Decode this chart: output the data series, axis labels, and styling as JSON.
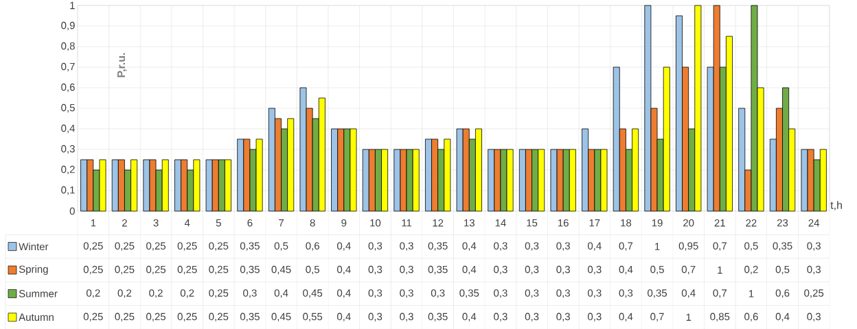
{
  "chart_data": {
    "type": "bar",
    "xlabel": "t,h",
    "ylabel": "P,r.u.",
    "categories": [
      "1",
      "2",
      "3",
      "4",
      "5",
      "6",
      "7",
      "8",
      "9",
      "10",
      "11",
      "12",
      "13",
      "14",
      "15",
      "16",
      "17",
      "18",
      "19",
      "20",
      "21",
      "22",
      "23",
      "24"
    ],
    "ylim": [
      0,
      1
    ],
    "yticks": [
      0,
      {
        "value": 0.1,
        "label": "0,1"
      },
      {
        "value": 0.2,
        "label": "0,2"
      },
      {
        "value": 0.3,
        "label": "0,3"
      },
      {
        "value": 0.4,
        "label": "0,4"
      },
      {
        "value": 0.5,
        "label": "0,5"
      },
      {
        "value": 0.6,
        "label": "0,6"
      },
      {
        "value": 0.7,
        "label": "0,7"
      },
      {
        "value": 0.8,
        "label": "0,8"
      },
      {
        "value": 0.9,
        "label": "0,9"
      },
      1
    ],
    "grid": true,
    "legend": "bottom",
    "series": [
      {
        "name": "Winter",
        "color": "#9dc3e6",
        "values": [
          0.25,
          0.25,
          0.25,
          0.25,
          0.25,
          0.35,
          0.5,
          0.6,
          0.4,
          0.3,
          0.3,
          0.35,
          0.4,
          0.3,
          0.3,
          0.3,
          0.4,
          0.7,
          1,
          0.95,
          0.7,
          0.5,
          0.35,
          0.3
        ],
        "value_labels": [
          "0,25",
          "0,25",
          "0,25",
          "0,25",
          "0,25",
          "0,35",
          "0,5",
          "0,6",
          "0,4",
          "0,3",
          "0,3",
          "0,35",
          "0,4",
          "0,3",
          "0,3",
          "0,3",
          "0,4",
          "0,7",
          "1",
          "0,95",
          "0,7",
          "0,5",
          "0,35",
          "0,3"
        ]
      },
      {
        "name": "Spring",
        "color": "#ed7d31",
        "values": [
          0.25,
          0.25,
          0.25,
          0.25,
          0.25,
          0.35,
          0.45,
          0.5,
          0.4,
          0.3,
          0.3,
          0.35,
          0.4,
          0.3,
          0.3,
          0.3,
          0.3,
          0.4,
          0.5,
          0.7,
          1,
          0.2,
          0.5,
          0.3
        ],
        "value_labels": [
          "0,25",
          "0,25",
          "0,25",
          "0,25",
          "0,25",
          "0,35",
          "0,45",
          "0,5",
          "0,4",
          "0,3",
          "0,3",
          "0,35",
          "0,4",
          "0,3",
          "0,3",
          "0,3",
          "0,3",
          "0,4",
          "0,5",
          "0,7",
          "1",
          "0,2",
          "0,5",
          "0,3"
        ]
      },
      {
        "name": "Summer",
        "color": "#70ad47",
        "values": [
          0.2,
          0.2,
          0.2,
          0.2,
          0.25,
          0.3,
          0.4,
          0.45,
          0.4,
          0.3,
          0.3,
          0.3,
          0.35,
          0.3,
          0.3,
          0.3,
          0.3,
          0.3,
          0.35,
          0.4,
          0.7,
          1,
          0.6,
          0.25
        ],
        "value_labels": [
          "0,2",
          "0,2",
          "0,2",
          "0,2",
          "0,25",
          "0,3",
          "0,4",
          "0,45",
          "0,4",
          "0,3",
          "0,3",
          "0,3",
          "0,35",
          "0,3",
          "0,3",
          "0,3",
          "0,3",
          "0,3",
          "0,35",
          "0,4",
          "0,7",
          "1",
          "0,6",
          "0,25"
        ]
      },
      {
        "name": "Autumn",
        "color": "#ffff00",
        "values": [
          0.25,
          0.25,
          0.25,
          0.25,
          0.25,
          0.35,
          0.45,
          0.55,
          0.4,
          0.3,
          0.3,
          0.35,
          0.4,
          0.3,
          0.3,
          0.3,
          0.3,
          0.4,
          0.7,
          1,
          0.85,
          0.6,
          0.4,
          0.3
        ],
        "value_labels": [
          "0,25",
          "0,25",
          "0,25",
          "0,25",
          "0,25",
          "0,35",
          "0,45",
          "0,55",
          "0,4",
          "0,3",
          "0,3",
          "0,35",
          "0,4",
          "0,3",
          "0,3",
          "0,3",
          "0,3",
          "0,4",
          "0,7",
          "1",
          "0,85",
          "0,6",
          "0,4",
          "0,3"
        ]
      }
    ]
  }
}
